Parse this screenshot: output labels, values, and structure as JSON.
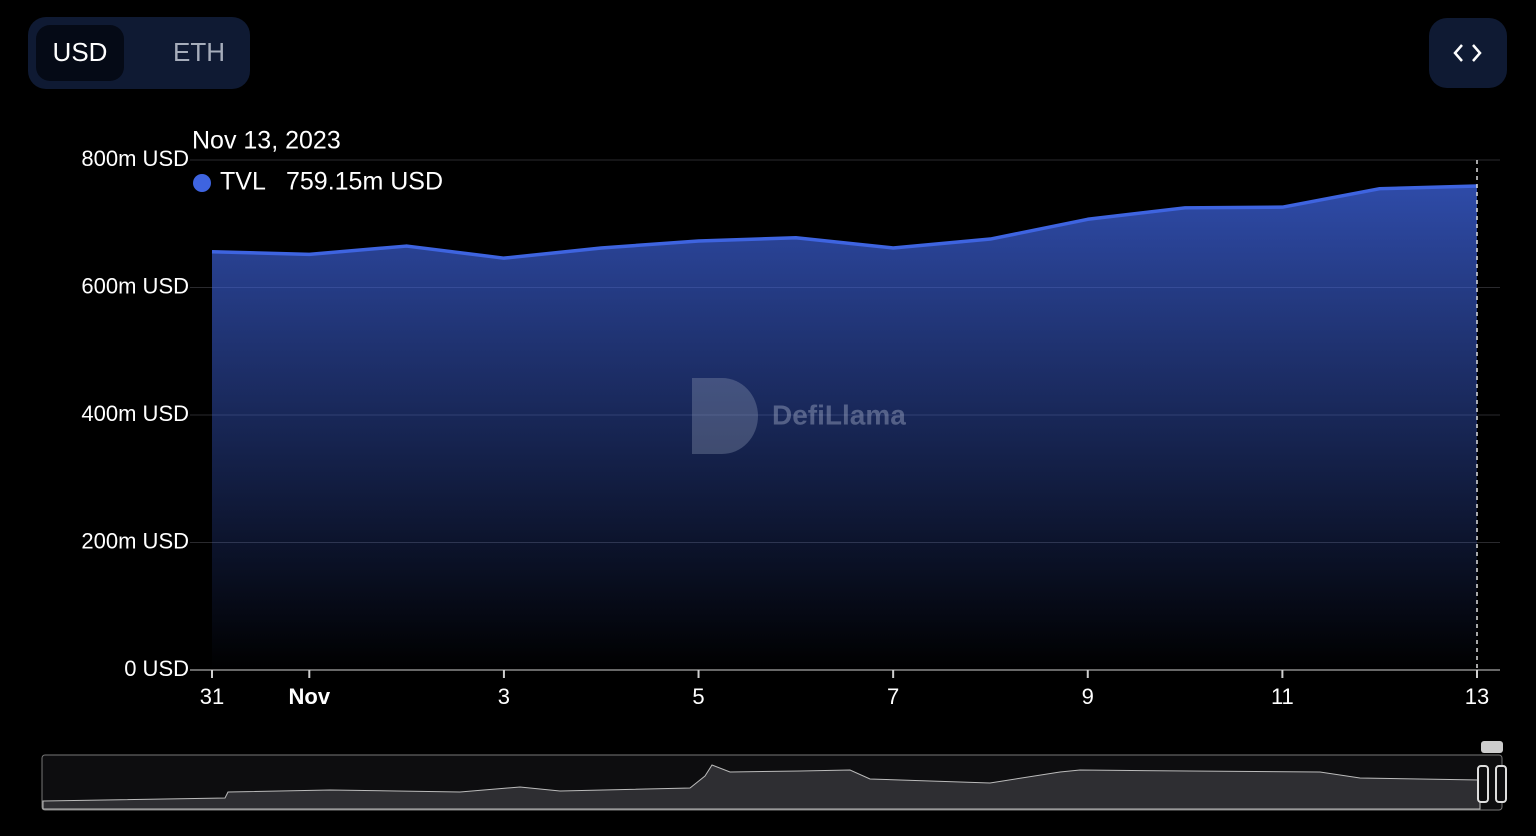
{
  "toggle": {
    "options": [
      "USD",
      "ETH"
    ]
  },
  "watermark": "DefiLlama",
  "chart_data": {
    "type": "area",
    "x": [
      "2023-10-31",
      "2023-11-01",
      "2023-11-02",
      "2023-11-03",
      "2023-11-04",
      "2023-11-05",
      "2023-11-06",
      "2023-11-07",
      "2023-11-08",
      "2023-11-09",
      "2023-11-10",
      "2023-11-11",
      "2023-11-12",
      "2023-11-13"
    ],
    "series": [
      {
        "name": "TVL",
        "color": "#3e64e0",
        "values": [
          656,
          652,
          665,
          646,
          662,
          673,
          678,
          662,
          676,
          707,
          725,
          726,
          755,
          759.15
        ]
      }
    ],
    "xlim": [
      "2023-10-31",
      "2023-11-13"
    ],
    "xticks": [
      {
        "value": "2023-10-31",
        "label": "31"
      },
      {
        "value": "2023-11-01",
        "label": "Nov"
      },
      {
        "value": "2023-11-03",
        "label": "3"
      },
      {
        "value": "2023-11-05",
        "label": "5"
      },
      {
        "value": "2023-11-07",
        "label": "7"
      },
      {
        "value": "2023-11-09",
        "label": "9"
      },
      {
        "value": "2023-11-11",
        "label": "11"
      },
      {
        "value": "2023-11-13",
        "label": "13"
      }
    ],
    "ylim": [
      0,
      800
    ],
    "yticks": [
      {
        "value": 0,
        "label": "0 USD"
      },
      {
        "value": 200,
        "label": "200m USD"
      },
      {
        "value": 400,
        "label": "400m USD"
      },
      {
        "value": 600,
        "label": "600m USD"
      },
      {
        "value": 800,
        "label": "800m USD"
      }
    ],
    "grid": true,
    "tooltip": {
      "title": "Nov 13, 2023",
      "label": "759.15m USD"
    }
  }
}
